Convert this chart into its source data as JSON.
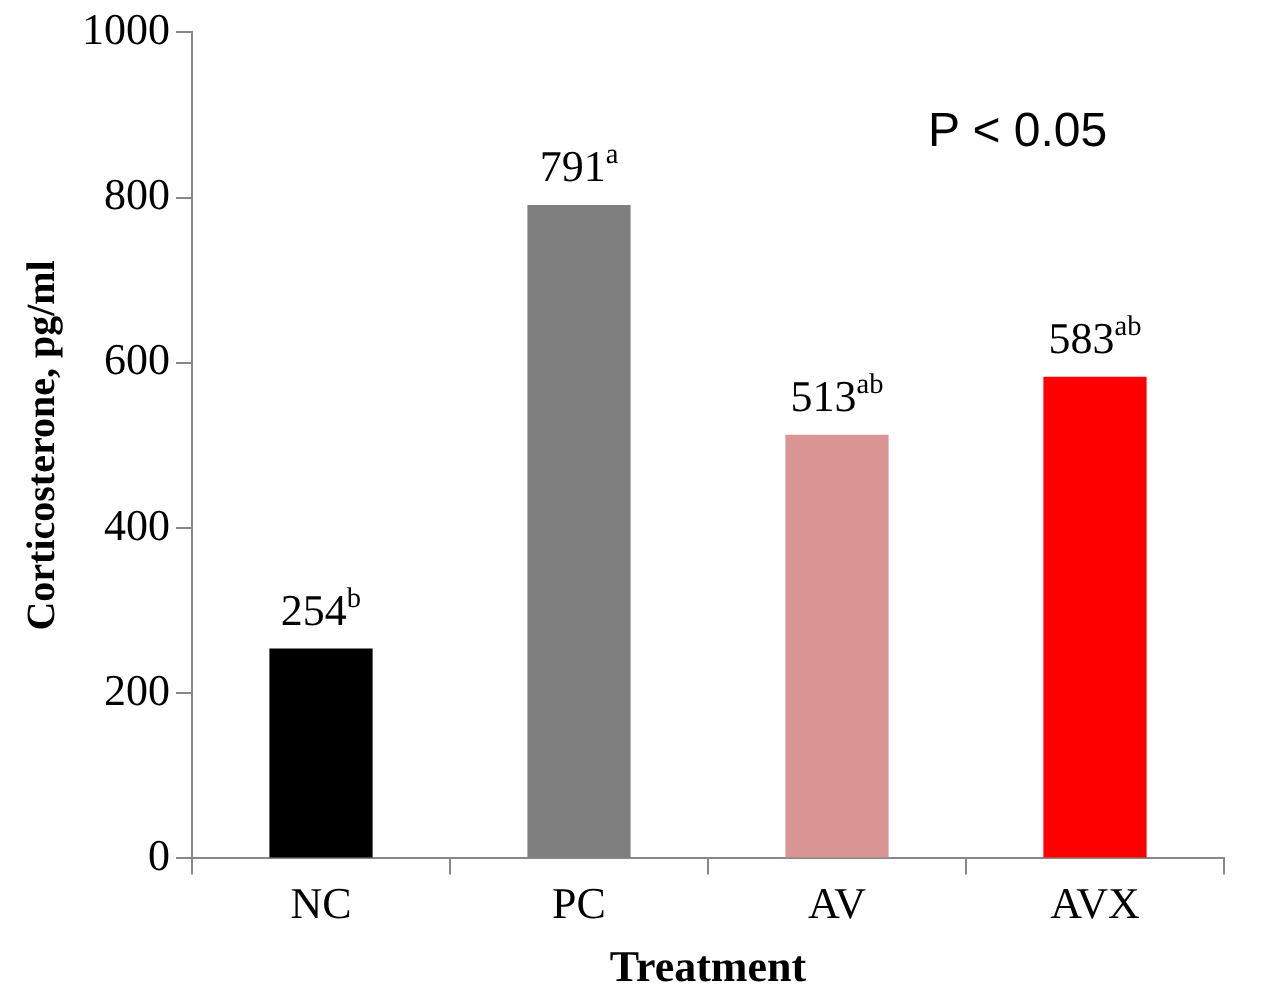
{
  "chart_data": {
    "type": "bar",
    "xlabel": "Treatment",
    "ylabel": "Corticosterone, pg/ml",
    "categories": [
      "NC",
      "PC",
      "AV",
      "AVX"
    ],
    "values": [
      254,
      791,
      513,
      583
    ],
    "colors": [
      "#000000",
      "#7f7f7f",
      "#d99594",
      "#ff0000"
    ],
    "value_labels": [
      "254$^{b}$",
      "791$^{a}$",
      "513$^{ab}$",
      "583$^{ab}$"
    ],
    "ylim": [
      0,
      1000
    ],
    "yticks": [
      0,
      200,
      400,
      600,
      800,
      1000
    ],
    "grid": false,
    "legend": false,
    "annotations": [
      "P < 0.05"
    ]
  }
}
